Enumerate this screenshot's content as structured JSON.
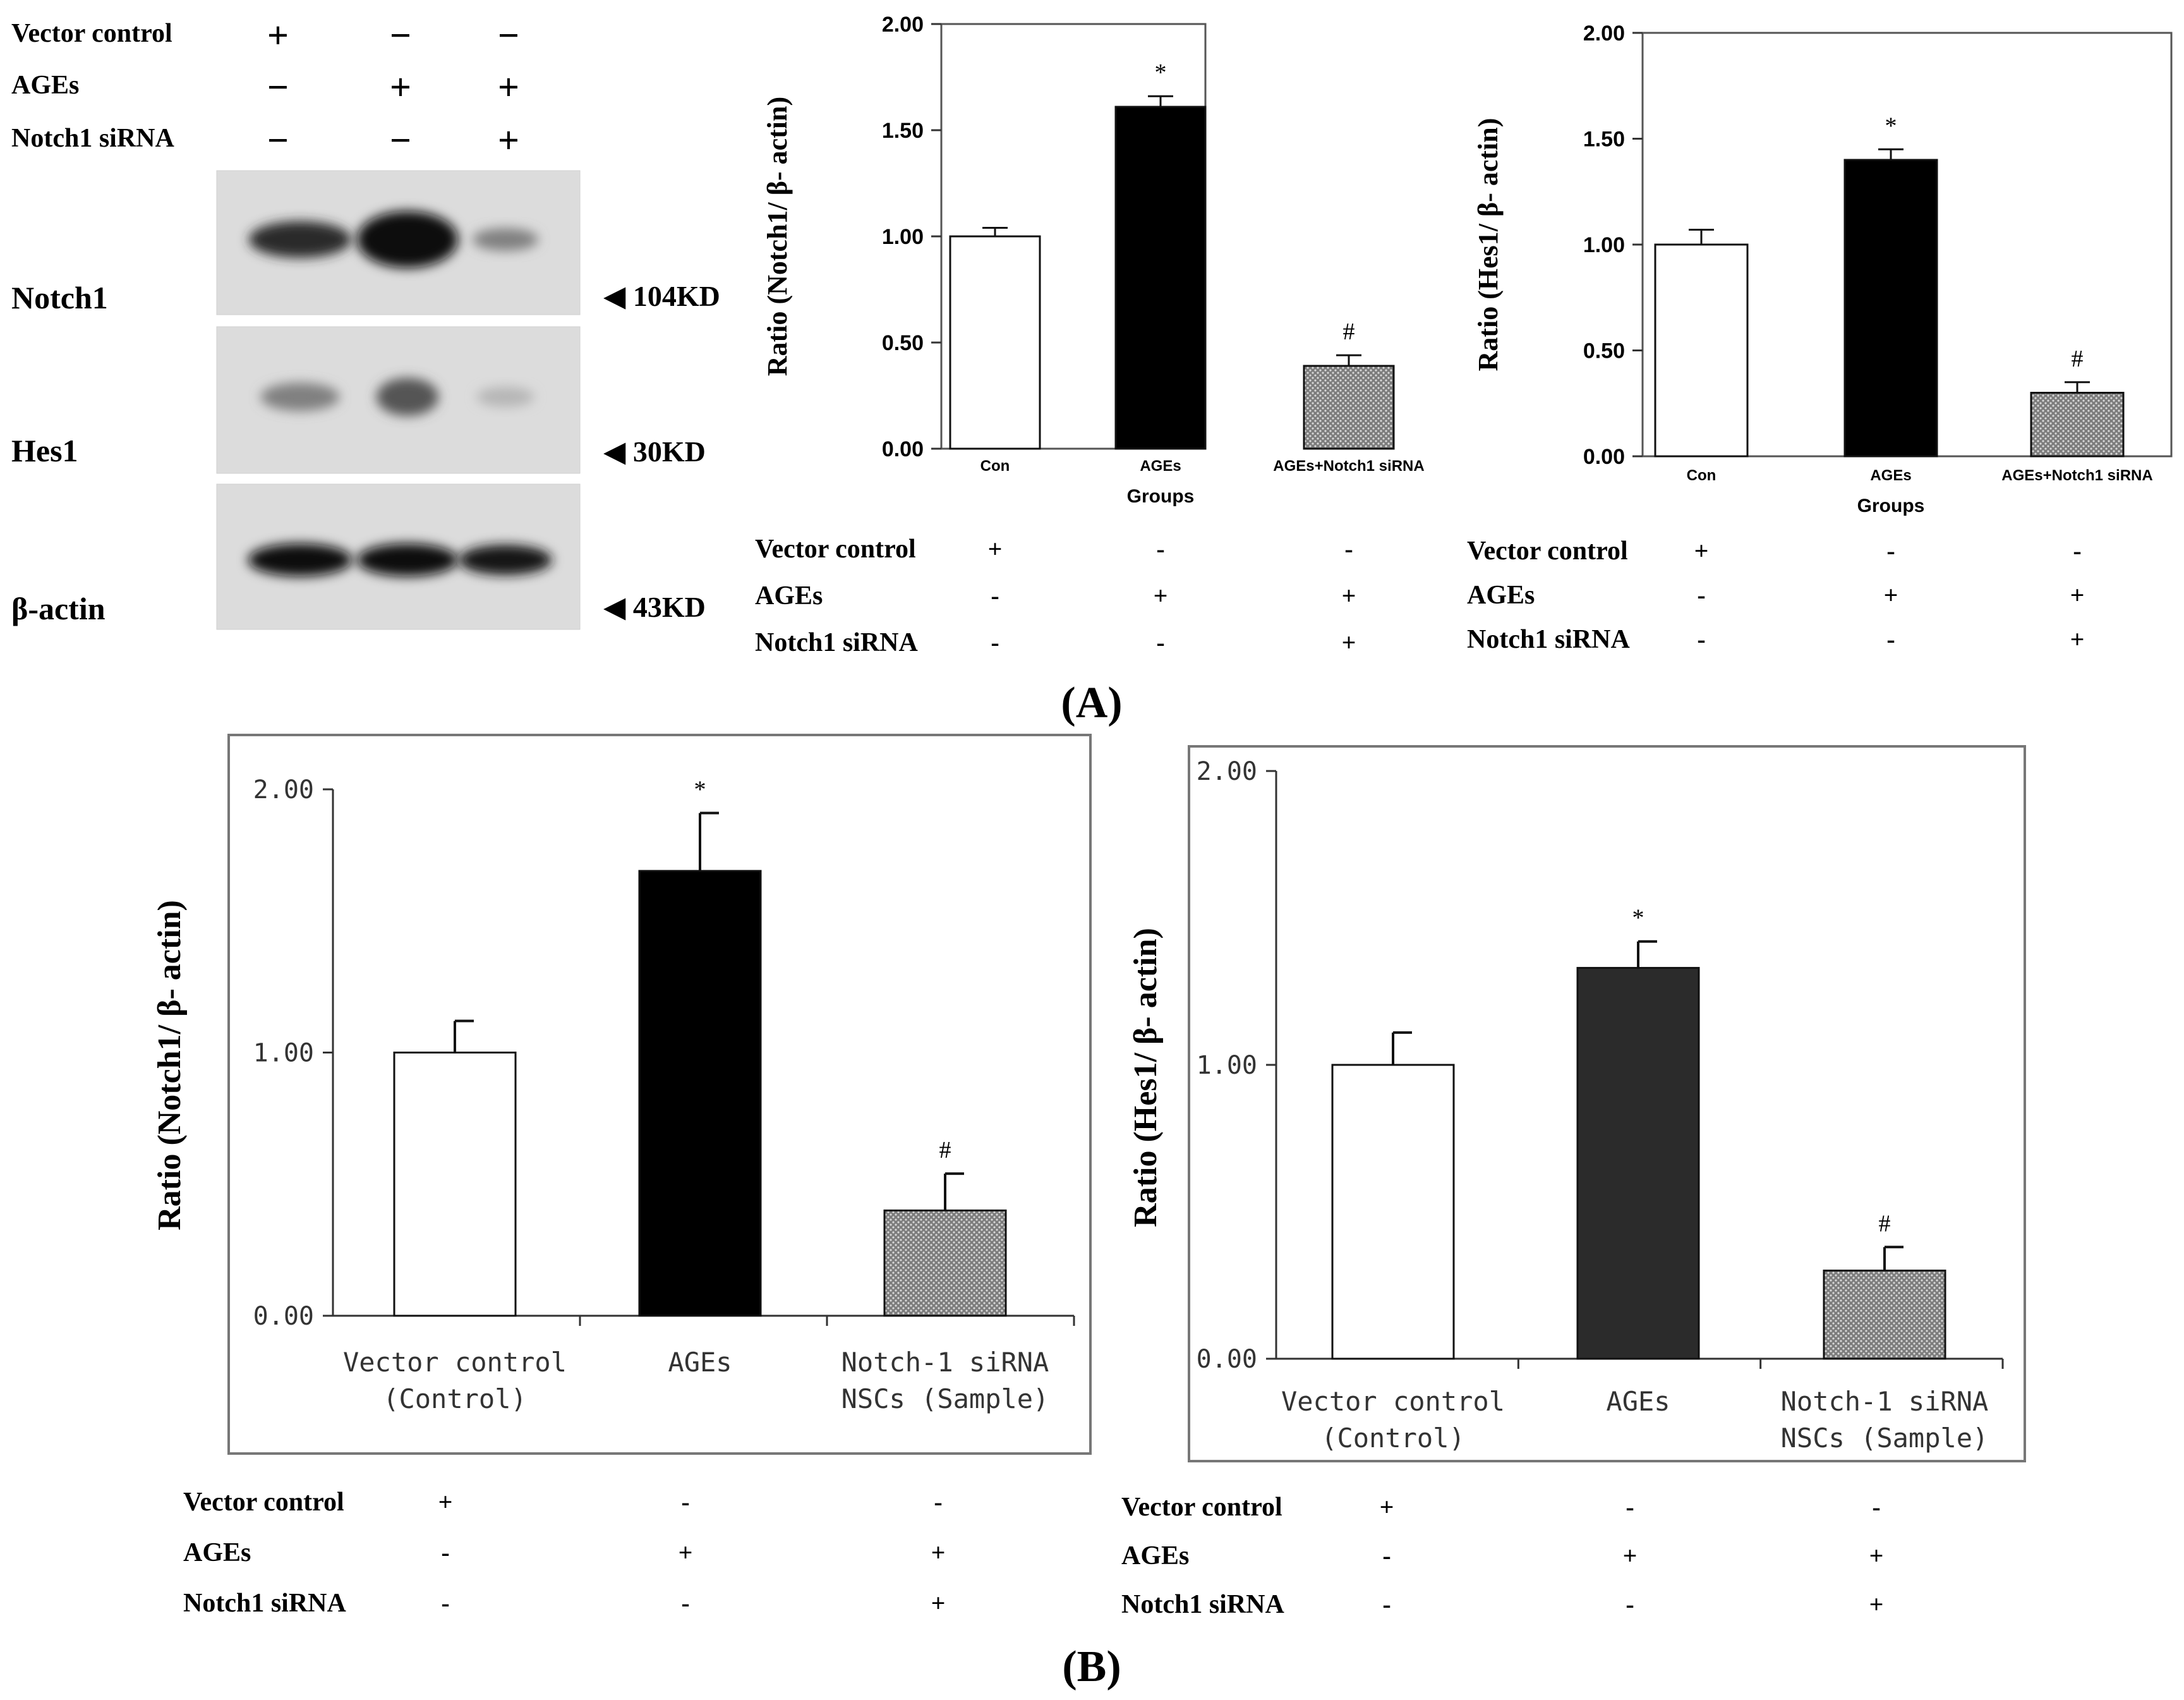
{
  "blot": {
    "header_rows": [
      {
        "label": "Vector control",
        "signs": [
          "+",
          "−",
          "−"
        ]
      },
      {
        "label": "AGEs",
        "signs": [
          "−",
          "+",
          "+"
        ]
      },
      {
        "label": "Notch1 siRNA",
        "signs": [
          "−",
          "−",
          "+"
        ]
      }
    ],
    "bands": [
      {
        "name": "Notch1",
        "mw": "◀ 104KD",
        "intensity": [
          0.85,
          1.0,
          0.45
        ]
      },
      {
        "name": "Hes1",
        "mw": "◀ 30KD",
        "intensity": [
          0.45,
          0.65,
          0.2
        ]
      },
      {
        "name": "β-actin",
        "mw": "◀ 43KD",
        "intensity": [
          1.0,
          1.0,
          0.95
        ]
      }
    ]
  },
  "chart_data": [
    {
      "id": "a1",
      "type": "bar",
      "categories": [
        "Con",
        "AGEs",
        "AGEs+Notch1 siRNA"
      ],
      "values": [
        1.0,
        1.61,
        0.39
      ],
      "errors": [
        0.04,
        0.05,
        0.05
      ],
      "annotations": [
        "",
        "*",
        "#"
      ],
      "ylim": [
        0,
        2.0
      ],
      "yticks": [
        "0.00",
        "0.50",
        "1.00",
        "1.50",
        "2.00"
      ],
      "ylabel": "Ratio (Notch1/ β- actin)",
      "xlabel": "Groups",
      "conditions": [
        {
          "label": "Vector control",
          "signs": [
            "+",
            "-",
            "-"
          ]
        },
        {
          "label": "AGEs",
          "signs": [
            "-",
            "+",
            "+"
          ]
        },
        {
          "label": "Notch1 siRNA",
          "signs": [
            "-",
            "-",
            "+"
          ]
        }
      ]
    },
    {
      "id": "a2",
      "type": "bar",
      "categories": [
        "Con",
        "AGEs",
        "AGEs+Notch1 siRNA"
      ],
      "values": [
        1.0,
        1.4,
        0.3
      ],
      "errors": [
        0.07,
        0.05,
        0.05
      ],
      "annotations": [
        "",
        "*",
        "#"
      ],
      "ylim": [
        0,
        2.0
      ],
      "yticks": [
        "0.00",
        "0.50",
        "1.00",
        "1.50",
        "2.00"
      ],
      "ylabel": "Ratio (Hes1/ β- actin)",
      "xlabel": "Groups",
      "conditions": [
        {
          "label": "Vector control",
          "signs": [
            "+",
            "-",
            "-"
          ]
        },
        {
          "label": "AGEs",
          "signs": [
            "-",
            "+",
            "+"
          ]
        },
        {
          "label": "Notch1 siRNA",
          "signs": [
            "-",
            "-",
            "+"
          ]
        }
      ]
    },
    {
      "id": "b1",
      "type": "bar",
      "categories": [
        "Vector control\n(Control)",
        "AGEs",
        "Notch-1 siRNA\nNSCs (Sample)"
      ],
      "values": [
        1.0,
        1.69,
        0.4
      ],
      "errors": [
        0.12,
        0.22,
        0.14
      ],
      "annotations": [
        "",
        "*",
        "#"
      ],
      "ylim": [
        0,
        2.0
      ],
      "yticks": [
        "0.00",
        "1.00",
        "2.00"
      ],
      "ylabel": "Ratio (Notch1/ β- actin)",
      "xlabel": "",
      "conditions": [
        {
          "label": "Vector control",
          "signs": [
            "+",
            "-",
            "-"
          ]
        },
        {
          "label": "AGEs",
          "signs": [
            "-",
            "+",
            "+"
          ]
        },
        {
          "label": "Notch1 siRNA",
          "signs": [
            "-",
            "-",
            "+"
          ]
        }
      ]
    },
    {
      "id": "b2",
      "type": "bar",
      "categories": [
        "Vector control\n(Control)",
        "AGEs",
        "Notch-1 siRNA\nNSCs (Sample)"
      ],
      "values": [
        1.0,
        1.33,
        0.3
      ],
      "errors": [
        0.11,
        0.09,
        0.08
      ],
      "annotations": [
        "",
        "*",
        "#"
      ],
      "ylim": [
        0,
        2.0
      ],
      "yticks": [
        "0.00",
        "1.00",
        "2.00"
      ],
      "ylabel": "Ratio (Hes1/ β- actin)",
      "xlabel": "",
      "conditions": [
        {
          "label": "Vector control",
          "signs": [
            "+",
            "-",
            "-"
          ]
        },
        {
          "label": "AGEs",
          "signs": [
            "-",
            "+",
            "+"
          ]
        },
        {
          "label": "Notch1 siRNA",
          "signs": [
            "-",
            "-",
            "+"
          ]
        }
      ]
    }
  ],
  "panels": {
    "a": "(A)",
    "b": "(B)"
  },
  "colors": {
    "con": "#ffffff",
    "ages_a": "#000000",
    "ages_b2": "#2b2b2b",
    "sirna": "#9a9a9a",
    "axis": "#333333"
  }
}
